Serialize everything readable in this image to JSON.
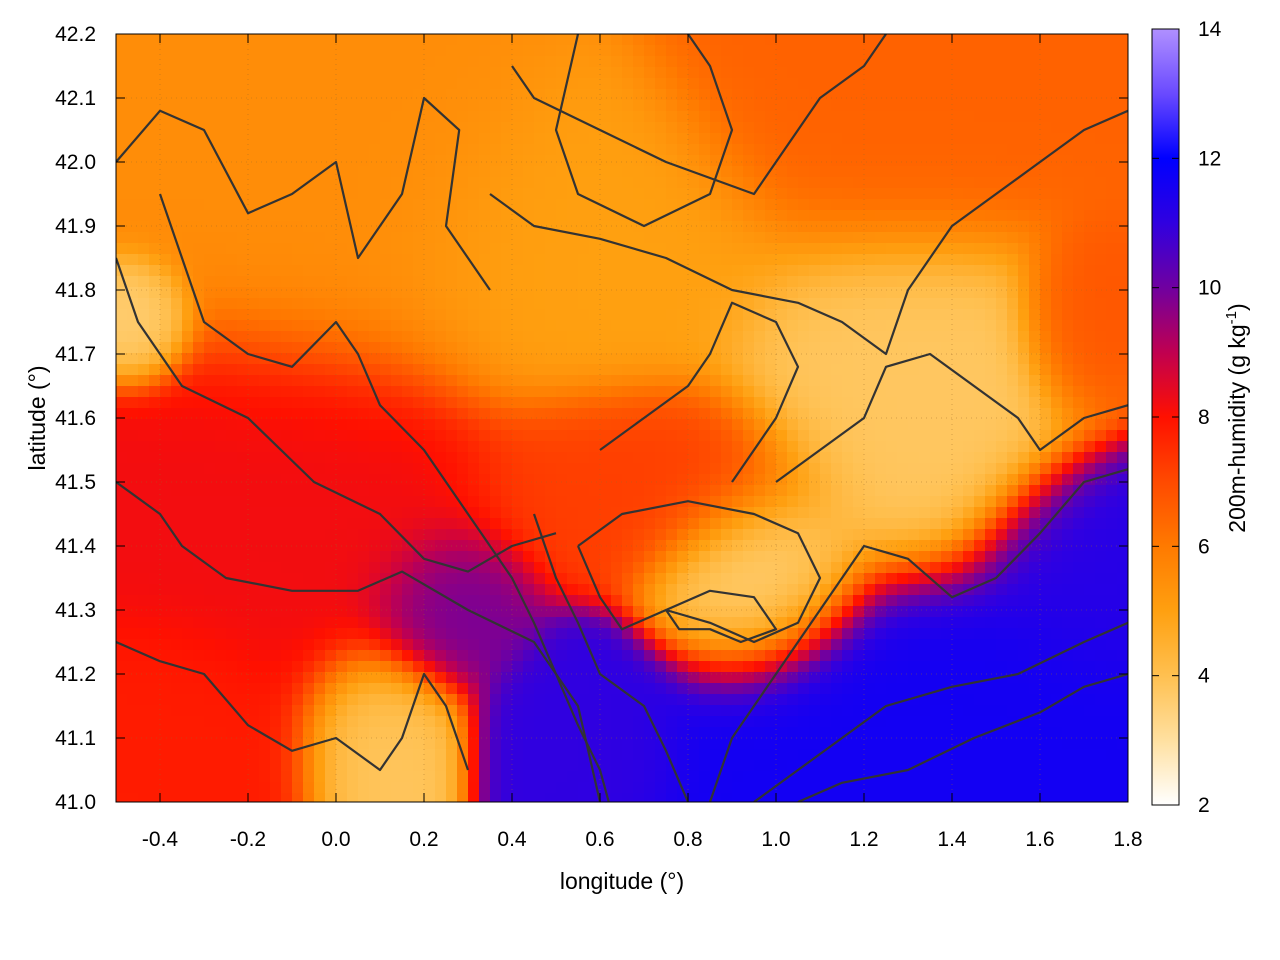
{
  "chart_data": {
    "type": "heatmap",
    "title": "",
    "xlabel": "longitude (°)",
    "ylabel": "latitude (°)",
    "colorbar_label": "200m-humidity (g kg-1)",
    "colorbar_label_main": "200m-humidity (g kg",
    "colorbar_label_sup": "-1",
    "colorbar_label_end": ")",
    "xlim": [
      -0.5,
      1.8
    ],
    "ylim": [
      41.0,
      42.2
    ],
    "clim": [
      2,
      14
    ],
    "x_ticks": [
      -0.4,
      -0.2,
      0.0,
      0.2,
      0.4,
      0.6,
      0.8,
      1.0,
      1.2,
      1.4,
      1.6,
      1.8
    ],
    "x_tick_labels": [
      "-0.4",
      "-0.2",
      "0.0",
      "0.2",
      "0.4",
      "0.6",
      "0.8",
      "1.0",
      "1.2",
      "1.4",
      "1.6",
      "1.8"
    ],
    "y_ticks": [
      41.0,
      41.1,
      41.2,
      41.3,
      41.4,
      41.5,
      41.6,
      41.7,
      41.8,
      41.9,
      42.0,
      42.1,
      42.2
    ],
    "y_tick_labels": [
      "41.0",
      "41.1",
      "41.2",
      "41.3",
      "41.4",
      "41.5",
      "41.6",
      "41.7",
      "41.8",
      "41.9",
      "42.0",
      "42.1",
      "42.2"
    ],
    "c_ticks": [
      2,
      4,
      6,
      8,
      10,
      12,
      14
    ],
    "c_tick_labels": [
      "2",
      "4",
      "6",
      "8",
      "10",
      "12",
      "14"
    ],
    "grid": true,
    "colormap": [
      {
        "v": 2,
        "color": "#ffffff"
      },
      {
        "v": 3,
        "color": "#ffe0a0"
      },
      {
        "v": 4,
        "color": "#ffc050"
      },
      {
        "v": 5,
        "color": "#ffa010"
      },
      {
        "v": 6,
        "color": "#ff7a00"
      },
      {
        "v": 7,
        "color": "#ff4a00"
      },
      {
        "v": 8,
        "color": "#ff1000"
      },
      {
        "v": 9,
        "color": "#c00050"
      },
      {
        "v": 10,
        "color": "#7000a0"
      },
      {
        "v": 11,
        "color": "#3000e0"
      },
      {
        "v": 12,
        "color": "#0000ff"
      },
      {
        "v": 13,
        "color": "#6a4aff"
      },
      {
        "v": 14,
        "color": "#b090ff"
      }
    ],
    "field_regions": [
      {
        "lon": 1.45,
        "lat": 41.1,
        "value": 11.6,
        "spread_lon": 0.45,
        "spread_lat": 0.16
      },
      {
        "lon": 1.75,
        "lat": 41.35,
        "value": 11.2,
        "spread_lon": 0.18,
        "spread_lat": 0.12
      },
      {
        "lon": 0.55,
        "lat": 41.1,
        "value": 11.0,
        "spread_lon": 0.14,
        "spread_lat": 0.1
      },
      {
        "lon": 0.25,
        "lat": 41.3,
        "value": 10.0,
        "spread_lon": 0.12,
        "spread_lat": 0.08
      },
      {
        "lon": -0.1,
        "lat": 41.45,
        "value": 8.2,
        "spread_lon": 0.3,
        "spread_lat": 0.2
      },
      {
        "lon": -0.35,
        "lat": 41.1,
        "value": 7.8,
        "spread_lon": 0.2,
        "spread_lat": 0.12
      },
      {
        "lon": 0.7,
        "lat": 41.5,
        "value": 7.2,
        "spread_lon": 0.25,
        "spread_lat": 0.1
      },
      {
        "lon": 0.1,
        "lat": 41.1,
        "value": 3.8,
        "spread_lon": 0.12,
        "spread_lat": 0.1
      },
      {
        "lon": 0.95,
        "lat": 41.35,
        "value": 3.5,
        "spread_lon": 0.15,
        "spread_lat": 0.1
      },
      {
        "lon": 1.3,
        "lat": 41.65,
        "value": 3.8,
        "spread_lon": 0.25,
        "spread_lat": 0.18
      },
      {
        "lon": 0.55,
        "lat": 41.85,
        "value": 5.0,
        "spread_lon": 0.3,
        "spread_lat": 0.15
      },
      {
        "lon": 0.0,
        "lat": 41.95,
        "value": 5.5,
        "spread_lon": 0.3,
        "spread_lat": 0.2
      },
      {
        "lon": 1.3,
        "lat": 42.05,
        "value": 6.5,
        "spread_lon": 0.3,
        "spread_lat": 0.15
      },
      {
        "lon": -0.45,
        "lat": 41.75,
        "value": 3.5,
        "spread_lon": 0.08,
        "spread_lat": 0.06
      },
      {
        "lon": 1.7,
        "lat": 41.75,
        "value": 6.8,
        "spread_lon": 0.1,
        "spread_lat": 0.1
      }
    ],
    "contour_lines": [
      [
        [
          -0.5,
          42.0
        ],
        [
          -0.4,
          42.08
        ],
        [
          -0.3,
          42.05
        ],
        [
          -0.2,
          41.92
        ],
        [
          -0.1,
          41.95
        ],
        [
          0.0,
          42.0
        ],
        [
          0.05,
          41.85
        ],
        [
          0.15,
          41.95
        ],
        [
          0.2,
          42.1
        ],
        [
          0.28,
          42.05
        ],
        [
          0.25,
          41.9
        ],
        [
          0.35,
          41.8
        ]
      ],
      [
        [
          -0.4,
          41.95
        ],
        [
          -0.35,
          41.85
        ],
        [
          -0.3,
          41.75
        ],
        [
          -0.2,
          41.7
        ],
        [
          -0.1,
          41.68
        ],
        [
          0.0,
          41.75
        ],
        [
          0.05,
          41.7
        ],
        [
          0.1,
          41.62
        ],
        [
          0.2,
          41.55
        ],
        [
          0.3,
          41.45
        ],
        [
          0.35,
          41.4
        ]
      ],
      [
        [
          -0.5,
          41.85
        ],
        [
          -0.45,
          41.75
        ],
        [
          -0.35,
          41.65
        ],
        [
          -0.2,
          41.6
        ],
        [
          -0.05,
          41.5
        ],
        [
          0.1,
          41.45
        ],
        [
          0.2,
          41.38
        ],
        [
          0.3,
          41.36
        ],
        [
          0.4,
          41.4
        ],
        [
          0.5,
          41.42
        ]
      ],
      [
        [
          -0.5,
          41.5
        ],
        [
          -0.4,
          41.45
        ],
        [
          -0.35,
          41.4
        ],
        [
          -0.25,
          41.35
        ],
        [
          -0.1,
          41.33
        ],
        [
          0.05,
          41.33
        ],
        [
          0.15,
          41.36
        ],
        [
          0.3,
          41.3
        ],
        [
          0.45,
          41.25
        ],
        [
          0.55,
          41.15
        ],
        [
          0.6,
          41.0
        ]
      ],
      [
        [
          -0.5,
          41.25
        ],
        [
          -0.4,
          41.22
        ],
        [
          -0.3,
          41.2
        ],
        [
          -0.2,
          41.12
        ],
        [
          -0.1,
          41.08
        ],
        [
          0.0,
          41.1
        ],
        [
          0.1,
          41.05
        ],
        [
          0.15,
          41.1
        ],
        [
          0.2,
          41.2
        ],
        [
          0.25,
          41.15
        ],
        [
          0.3,
          41.05
        ]
      ],
      [
        [
          0.55,
          42.2
        ],
        [
          0.5,
          42.05
        ],
        [
          0.55,
          41.95
        ],
        [
          0.7,
          41.9
        ],
        [
          0.85,
          41.95
        ],
        [
          0.9,
          42.05
        ],
        [
          0.85,
          42.15
        ],
        [
          0.8,
          42.2
        ]
      ],
      [
        [
          0.4,
          42.15
        ],
        [
          0.45,
          42.1
        ],
        [
          0.6,
          42.05
        ],
        [
          0.75,
          42.0
        ],
        [
          0.95,
          41.95
        ],
        [
          1.05,
          42.05
        ],
        [
          1.1,
          42.1
        ],
        [
          1.2,
          42.15
        ],
        [
          1.25,
          42.2
        ]
      ],
      [
        [
          0.35,
          41.95
        ],
        [
          0.45,
          41.9
        ],
        [
          0.6,
          41.88
        ],
        [
          0.75,
          41.85
        ],
        [
          0.9,
          41.8
        ],
        [
          1.05,
          41.78
        ],
        [
          1.15,
          41.75
        ],
        [
          1.25,
          41.7
        ],
        [
          1.3,
          41.8
        ],
        [
          1.4,
          41.9
        ],
        [
          1.5,
          41.95
        ],
        [
          1.6,
          42.0
        ],
        [
          1.7,
          42.05
        ],
        [
          1.8,
          42.08
        ]
      ],
      [
        [
          0.6,
          41.55
        ],
        [
          0.7,
          41.6
        ],
        [
          0.8,
          41.65
        ],
        [
          0.85,
          41.7
        ],
        [
          0.9,
          41.78
        ],
        [
          1.0,
          41.75
        ],
        [
          1.05,
          41.68
        ],
        [
          1.0,
          41.6
        ],
        [
          0.95,
          41.55
        ],
        [
          0.9,
          41.5
        ]
      ],
      [
        [
          0.55,
          41.4
        ],
        [
          0.65,
          41.45
        ],
        [
          0.8,
          41.47
        ],
        [
          0.95,
          41.45
        ],
        [
          1.05,
          41.42
        ],
        [
          1.1,
          41.35
        ],
        [
          1.05,
          41.28
        ],
        [
          0.95,
          41.25
        ],
        [
          0.85,
          41.28
        ],
        [
          0.75,
          41.3
        ],
        [
          0.65,
          41.27
        ],
        [
          0.6,
          41.32
        ],
        [
          0.55,
          41.4
        ]
      ],
      [
        [
          0.75,
          41.3
        ],
        [
          0.85,
          41.33
        ],
        [
          0.95,
          41.32
        ],
        [
          1.0,
          41.27
        ],
        [
          0.92,
          41.25
        ],
        [
          0.85,
          41.27
        ],
        [
          0.78,
          41.27
        ],
        [
          0.75,
          41.3
        ]
      ],
      [
        [
          1.0,
          41.5
        ],
        [
          1.1,
          41.55
        ],
        [
          1.2,
          41.6
        ],
        [
          1.25,
          41.68
        ],
        [
          1.35,
          41.7
        ],
        [
          1.45,
          41.65
        ],
        [
          1.55,
          41.6
        ],
        [
          1.6,
          41.55
        ],
        [
          1.7,
          41.6
        ],
        [
          1.8,
          41.62
        ]
      ],
      [
        [
          0.85,
          41.0
        ],
        [
          0.9,
          41.1
        ],
        [
          1.0,
          41.2
        ],
        [
          1.1,
          41.3
        ],
        [
          1.2,
          41.4
        ],
        [
          1.3,
          41.38
        ],
        [
          1.4,
          41.32
        ],
        [
          1.5,
          41.35
        ],
        [
          1.6,
          41.42
        ],
        [
          1.7,
          41.5
        ],
        [
          1.8,
          41.52
        ]
      ],
      [
        [
          0.95,
          41.0
        ],
        [
          1.05,
          41.05
        ],
        [
          1.15,
          41.1
        ],
        [
          1.25,
          41.15
        ],
        [
          1.4,
          41.18
        ],
        [
          1.55,
          41.2
        ],
        [
          1.7,
          41.25
        ],
        [
          1.8,
          41.28
        ]
      ],
      [
        [
          1.05,
          41.0
        ],
        [
          1.15,
          41.03
        ],
        [
          1.3,
          41.05
        ],
        [
          1.45,
          41.1
        ],
        [
          1.6,
          41.14
        ],
        [
          1.7,
          41.18
        ],
        [
          1.8,
          41.2
        ]
      ],
      [
        [
          0.35,
          41.4
        ],
        [
          0.4,
          41.35
        ],
        [
          0.45,
          41.28
        ],
        [
          0.5,
          41.2
        ],
        [
          0.55,
          41.12
        ],
        [
          0.6,
          41.05
        ],
        [
          0.62,
          41.0
        ]
      ],
      [
        [
          0.45,
          41.45
        ],
        [
          0.5,
          41.35
        ],
        [
          0.55,
          41.28
        ],
        [
          0.6,
          41.2
        ],
        [
          0.7,
          41.15
        ],
        [
          0.75,
          41.08
        ],
        [
          0.8,
          41.0
        ]
      ]
    ]
  }
}
